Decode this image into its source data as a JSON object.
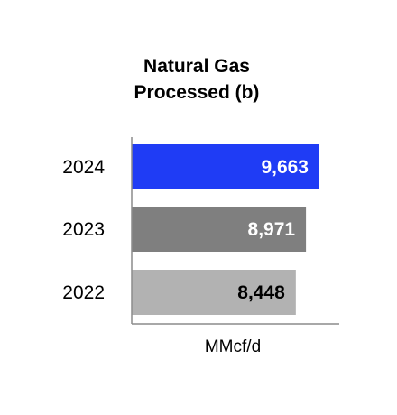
{
  "chart_data": {
    "type": "bar",
    "orientation": "horizontal",
    "title": [
      "Natural Gas",
      "Processed (b)"
    ],
    "xlabel": "MMcf/d",
    "ylabel": "",
    "categories": [
      "2024",
      "2023",
      "2022"
    ],
    "values": [
      9663,
      8971,
      8448
    ],
    "value_labels": [
      "9,663",
      "8,971",
      "8,448"
    ],
    "colors": [
      "#1f3cf5",
      "#7f7f7f",
      "#b2b2b2"
    ],
    "label_colors": [
      "#ffffff",
      "#ffffff",
      "#000000"
    ],
    "xlim": [
      0,
      10000
    ],
    "grid": false,
    "legend": "none"
  }
}
